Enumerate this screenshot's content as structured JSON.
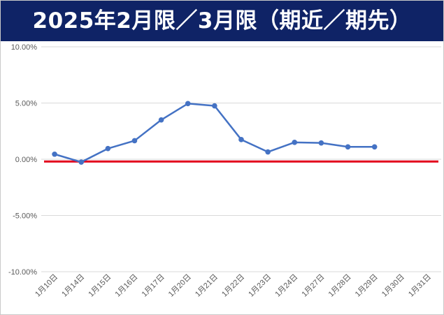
{
  "header": {
    "title": "2025年2月限／3月限（期近／期先）"
  },
  "colors": {
    "title_bg": "#0f2366",
    "title_text": "#ffffff",
    "series": "#4472c4",
    "zero_line": "#e3001b",
    "grid": "#d9d9d9"
  },
  "chart_data": {
    "type": "line",
    "title": "2025年2月限／3月限（期近／期先）",
    "categories": [
      "1月10日",
      "1月14日",
      "1月15日",
      "1月16日",
      "1月17日",
      "1月20日",
      "1月21日",
      "1月22日",
      "1月23日",
      "1月24日",
      "1月27日",
      "1月28日",
      "1月29日",
      "1月30日",
      "1月31日"
    ],
    "series": [
      {
        "values": [
          0.45,
          -0.25,
          0.95,
          1.65,
          3.5,
          4.95,
          4.75,
          1.75,
          0.65,
          1.5,
          1.45,
          1.1,
          1.1,
          null,
          null
        ]
      }
    ],
    "ylim": [
      -10,
      10
    ],
    "yticks": [
      10,
      5,
      0,
      -5,
      -10
    ],
    "ytick_labels": [
      "10.00%",
      "5.00%",
      "0.00%",
      "-5.00%",
      "-10.00%"
    ],
    "reference_line": {
      "value": -0.2
    },
    "grid": true,
    "legend": "none",
    "xlabel": "",
    "ylabel": ""
  }
}
